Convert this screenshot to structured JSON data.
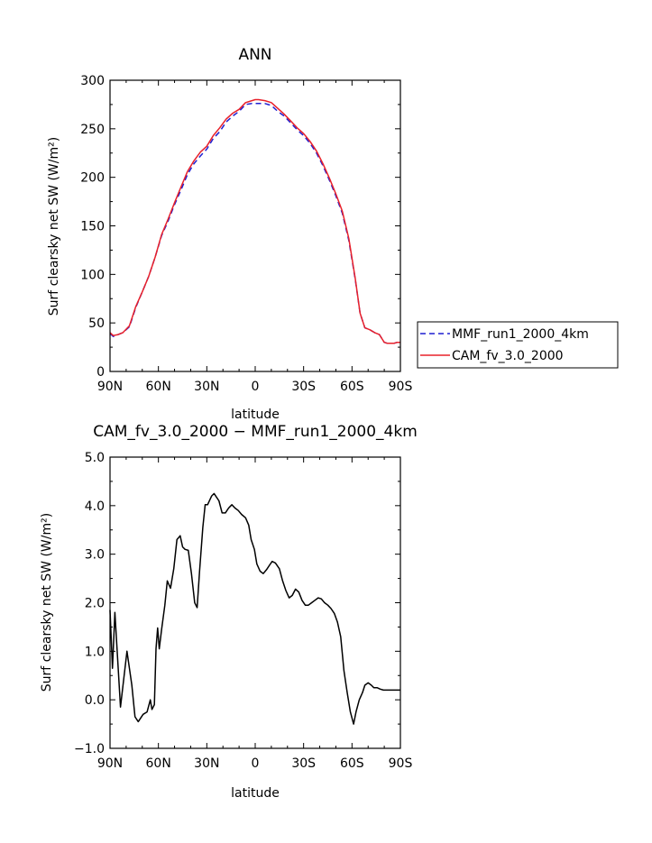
{
  "chart_data": [
    {
      "type": "line",
      "title": "ANN",
      "xlabel": "latitude",
      "ylabel": "Surf clearsky net SW (W/m²)",
      "xlim": [
        90,
        -90
      ],
      "ylim": [
        0,
        300
      ],
      "xticks": [
        {
          "value": 90,
          "label": "90N"
        },
        {
          "value": 60,
          "label": "60N"
        },
        {
          "value": 30,
          "label": "30N"
        },
        {
          "value": 0,
          "label": "0"
        },
        {
          "value": -30,
          "label": "30S"
        },
        {
          "value": -60,
          "label": "60S"
        },
        {
          "value": -90,
          "label": "90S"
        }
      ],
      "yticks": [
        {
          "value": 0,
          "label": "0"
        },
        {
          "value": 50,
          "label": "50"
        },
        {
          "value": 100,
          "label": "100"
        },
        {
          "value": 150,
          "label": "150"
        },
        {
          "value": 200,
          "label": "200"
        },
        {
          "value": 250,
          "label": "250"
        },
        {
          "value": 300,
          "label": "300"
        }
      ],
      "legend_position": "right",
      "series": [
        {
          "name": "MMF_run1_2000_4km",
          "color": "#1f1fd0",
          "style": "dashed",
          "x": [
            90,
            88,
            85,
            82,
            78,
            74,
            70,
            66,
            62,
            58,
            54,
            50,
            46,
            42,
            38,
            34,
            30,
            26,
            22,
            18,
            14,
            10,
            6,
            2,
            0,
            -2,
            -6,
            -10,
            -14,
            -18,
            -22,
            -26,
            -30,
            -34,
            -38,
            -42,
            -46,
            -50,
            -54,
            -58,
            -62,
            -65,
            -68,
            -71,
            -74,
            -77,
            -80,
            -82,
            -84,
            -86,
            -88,
            -90
          ],
          "y": [
            39,
            36,
            38,
            40,
            46,
            66,
            82,
            98,
            118,
            140,
            155,
            172,
            187,
            203,
            214,
            222,
            229,
            240,
            247,
            257,
            263,
            268,
            275,
            276,
            276,
            276,
            276,
            274,
            268,
            263,
            256,
            249,
            243,
            235,
            225,
            212,
            197,
            181,
            163,
            135,
            95,
            60,
            45,
            43,
            40,
            38,
            30,
            29,
            29,
            29,
            30,
            30
          ]
        },
        {
          "name": "CAM_fv_3.0_2000",
          "color": "#e8202a",
          "style": "solid",
          "x": [
            90,
            88,
            85,
            82,
            78,
            74,
            70,
            66,
            62,
            58,
            54,
            50,
            46,
            42,
            38,
            34,
            30,
            26,
            22,
            18,
            14,
            10,
            6,
            2,
            0,
            -2,
            -6,
            -10,
            -14,
            -18,
            -22,
            -26,
            -30,
            -34,
            -38,
            -42,
            -46,
            -50,
            -54,
            -58,
            -62,
            -65,
            -68,
            -71,
            -74,
            -77,
            -80,
            -82,
            -84,
            -86,
            -88,
            -90
          ],
          "y": [
            40,
            37,
            38,
            40,
            47,
            67,
            82,
            98,
            118,
            141,
            157,
            174,
            190,
            206,
            217,
            226,
            232,
            243,
            251,
            260,
            266,
            270,
            277,
            279,
            280,
            280,
            279,
            277,
            271,
            265,
            258,
            251,
            245,
            237,
            227,
            214,
            199,
            183,
            165,
            137,
            96,
            60,
            45,
            43,
            40,
            38,
            30,
            29,
            29,
            29,
            30,
            30
          ]
        }
      ]
    },
    {
      "type": "line",
      "title": "CAM_fv_3.0_2000 − MMF_run1_2000_4km",
      "xlabel": "latitude",
      "ylabel": "Surf clearsky net SW (W/m²)",
      "xlim": [
        90,
        -90
      ],
      "ylim": [
        -1.0,
        5.0
      ],
      "xticks": [
        {
          "value": 90,
          "label": "90N"
        },
        {
          "value": 60,
          "label": "60N"
        },
        {
          "value": 30,
          "label": "30N"
        },
        {
          "value": 0,
          "label": "0"
        },
        {
          "value": -30,
          "label": "30S"
        },
        {
          "value": -60,
          "label": "60S"
        },
        {
          "value": -90,
          "label": "90S"
        }
      ],
      "yticks": [
        {
          "value": -1.0,
          "label": "−1.0"
        },
        {
          "value": 0.0,
          "label": "0.0"
        },
        {
          "value": 1.0,
          "label": "1.0"
        },
        {
          "value": 2.0,
          "label": "2.0"
        },
        {
          "value": 3.0,
          "label": "3.0"
        },
        {
          "value": 4.0,
          "label": "4.0"
        },
        {
          "value": 5.0,
          "label": "5.0"
        }
      ],
      "series": [
        {
          "color": "#000000",
          "style": "solid",
          "x": [
            90,
            88.5,
            87,
            83.5,
            79.5,
            76.5,
            74.5,
            72.5,
            69.5,
            67,
            65,
            64,
            62.5,
            61.5,
            60.5,
            59.5,
            58,
            56,
            54.5,
            52.5,
            50.5,
            48.5,
            46.5,
            45,
            43.5,
            41.5,
            39.5,
            37.5,
            36,
            34.5,
            32.5,
            31,
            29.5,
            27,
            25.5,
            22.5,
            20.5,
            18.5,
            16.5,
            14.5,
            12.5,
            10.5,
            8.5,
            6,
            4,
            2.5,
            0.5,
            -1,
            -3,
            -5,
            -7,
            -9,
            -10.5,
            -12.5,
            -15,
            -17,
            -19,
            -21,
            -23,
            -25,
            -27,
            -29,
            -31,
            -33,
            -35,
            -37,
            -39,
            -41,
            -43,
            -45,
            -47,
            -49,
            -51,
            -53,
            -55,
            -57,
            -59,
            -61,
            -62.5,
            -64.5,
            -66.5,
            -68,
            -70,
            -72,
            -73.5,
            -75.5,
            -77.5,
            -79.5,
            -81.5,
            -83.5,
            -86,
            -88,
            -90
          ],
          "y": [
            1.85,
            0.65,
            1.8,
            -0.15,
            1.0,
            0.3,
            -0.35,
            -0.45,
            -0.3,
            -0.25,
            0.0,
            -0.2,
            -0.1,
            1.05,
            1.48,
            1.05,
            1.45,
            1.95,
            2.45,
            2.3,
            2.7,
            3.3,
            3.38,
            3.15,
            3.1,
            3.08,
            2.6,
            2.0,
            1.9,
            2.65,
            3.55,
            4.02,
            4.02,
            4.2,
            4.25,
            4.1,
            3.85,
            3.85,
            3.95,
            4.02,
            3.95,
            3.9,
            3.82,
            3.75,
            3.6,
            3.3,
            3.1,
            2.8,
            2.65,
            2.6,
            2.68,
            2.78,
            2.85,
            2.82,
            2.7,
            2.45,
            2.25,
            2.1,
            2.15,
            2.28,
            2.22,
            2.05,
            1.95,
            1.95,
            2.0,
            2.05,
            2.1,
            2.08,
            2.0,
            1.95,
            1.88,
            1.78,
            1.6,
            1.3,
            0.6,
            0.15,
            -0.25,
            -0.5,
            -0.25,
            0.0,
            0.15,
            0.3,
            0.35,
            0.3,
            0.25,
            0.25,
            0.22,
            0.2,
            0.2,
            0.2,
            0.2,
            0.2,
            0.2
          ]
        }
      ]
    }
  ]
}
